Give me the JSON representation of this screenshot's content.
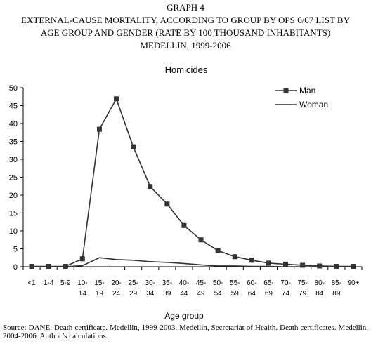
{
  "header": {
    "graph_label": "GRAPH 4",
    "title_line1": "EXTERNAL-CAUSE MORTALITY, ACCORDING TO GROUP BY OPS 6/67 LIST BY",
    "title_line2": "AGE GROUP AND GENDER (RATE BY 100 THOUSAND INHABITANTS)",
    "title_line3": "MEDELLIN, 1999-2006"
  },
  "footer": {
    "source": "Source: DANE. Death certificate. Medellin, 1999-2003. Medellin, Secretariat of Health. Death certificates. Medellin, 2004-2006. Author’s calculations."
  },
  "chart_data": {
    "type": "line",
    "title": "Homicides",
    "xlabel": "Age group",
    "ylabel": "",
    "ylim": [
      0,
      50
    ],
    "yticks": [
      0,
      5,
      10,
      15,
      20,
      25,
      30,
      35,
      40,
      45,
      50
    ],
    "grid": false,
    "legend_position": "top-right",
    "categories": [
      [
        "<1"
      ],
      [
        "1-4"
      ],
      [
        "5-9"
      ],
      [
        "10-",
        "14"
      ],
      [
        "15-",
        "19"
      ],
      [
        "20-",
        "24"
      ],
      [
        "25-",
        "29"
      ],
      [
        "30-",
        "34"
      ],
      [
        "35-",
        "39"
      ],
      [
        "40-",
        "44"
      ],
      [
        "45-",
        "49"
      ],
      [
        "50-",
        "54"
      ],
      [
        "55-",
        "59"
      ],
      [
        "60-",
        "64"
      ],
      [
        "65-",
        "69"
      ],
      [
        "70-",
        "74"
      ],
      [
        "75-",
        "79"
      ],
      [
        "80-",
        "84"
      ],
      [
        "85-",
        "89"
      ],
      [
        "90+"
      ]
    ],
    "series": [
      {
        "name": "Man",
        "marker": "square",
        "color": "#333333",
        "values": [
          0.1,
          0.1,
          0.1,
          2.2,
          38.4,
          46.9,
          33.5,
          22.4,
          17.5,
          11.5,
          7.5,
          4.5,
          2.8,
          1.8,
          1.0,
          0.7,
          0.4,
          0.2,
          0.1,
          0.1
        ]
      },
      {
        "name": "Woman",
        "marker": "none",
        "color": "#333333",
        "values": [
          0.0,
          0.0,
          0.0,
          0.3,
          2.5,
          2.0,
          1.8,
          1.4,
          1.2,
          0.9,
          0.5,
          0.2,
          0.2,
          0.1,
          0.1,
          0.0,
          0.0,
          0.0,
          0.0,
          0.0
        ]
      }
    ]
  }
}
